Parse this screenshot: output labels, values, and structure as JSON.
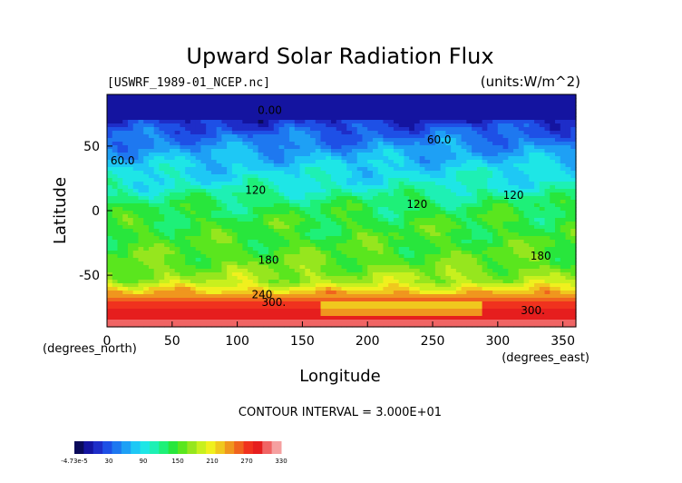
{
  "chart_data": {
    "type": "heatmap",
    "title": "Upward Solar Radiation Flux",
    "file_label": "[USWRF_1989-01_NCEP.nc]",
    "units_label": "(units:W/m^2)",
    "xlabel": "Longitude",
    "ylabel": "Latitude",
    "x_unit_label": "(degrees_east)",
    "y_unit_label": "(degrees_north)",
    "xlim": [
      0,
      360
    ],
    "ylim": [
      -90,
      90
    ],
    "x_ticks": [
      0,
      50,
      100,
      150,
      200,
      250,
      300,
      350
    ],
    "y_ticks": [
      50,
      0,
      -50
    ],
    "footnote": "CONTOUR INTERVAL = 3.000E+01",
    "contour_interval": 30,
    "contour_labels": [
      {
        "text": "0.00",
        "lon": 125,
        "lat": 75
      },
      {
        "text": "60.0",
        "lon": 255,
        "lat": 52
      },
      {
        "text": "60.0",
        "lon": 12,
        "lat": 36
      },
      {
        "text": "120",
        "lon": 114,
        "lat": 13
      },
      {
        "text": "120",
        "lon": 238,
        "lat": 2
      },
      {
        "text": "120",
        "lon": 312,
        "lat": 9
      },
      {
        "text": "180",
        "lon": 124,
        "lat": -41
      },
      {
        "text": "180",
        "lon": 333,
        "lat": -38
      },
      {
        "text": "240",
        "lon": 119,
        "lat": -68
      },
      {
        "text": "300.",
        "lon": 128,
        "lat": -74
      },
      {
        "text": "300.",
        "lon": 327,
        "lat": -80
      }
    ],
    "latitude_profile": [
      {
        "lat": 90,
        "value": 0
      },
      {
        "lat": 72,
        "value": 0
      },
      {
        "lat": 68,
        "value": 20
      },
      {
        "lat": 58,
        "value": 45
      },
      {
        "lat": 48,
        "value": 65
      },
      {
        "lat": 35,
        "value": 90
      },
      {
        "lat": 20,
        "value": 110
      },
      {
        "lat": 5,
        "value": 145
      },
      {
        "lat": -10,
        "value": 160
      },
      {
        "lat": -25,
        "value": 165
      },
      {
        "lat": -40,
        "value": 175
      },
      {
        "lat": -55,
        "value": 200
      },
      {
        "lat": -62,
        "value": 240
      },
      {
        "lat": -70,
        "value": 290
      },
      {
        "lat": -78,
        "value": 310
      },
      {
        "lat": -85,
        "value": 330
      },
      {
        "lat": -90,
        "value": 340
      }
    ],
    "colorbar": {
      "tick_labels": [
        "-4.73e-5",
        "30",
        "90",
        "150",
        "210",
        "270",
        "330"
      ],
      "min": -30,
      "max": 360,
      "colors": [
        "#0a0a5a",
        "#1414a0",
        "#1e2dc8",
        "#1e50e6",
        "#1e78f0",
        "#1ea0f5",
        "#1ec8f5",
        "#1ee6e6",
        "#1ef0b4",
        "#1ef078",
        "#28e63c",
        "#5ae61e",
        "#96e61e",
        "#c8f01e",
        "#f0f01e",
        "#f0c81e",
        "#f0961e",
        "#f0641e",
        "#f0321e",
        "#e61e1e",
        "#f06464",
        "#f5a0a0"
      ]
    }
  }
}
